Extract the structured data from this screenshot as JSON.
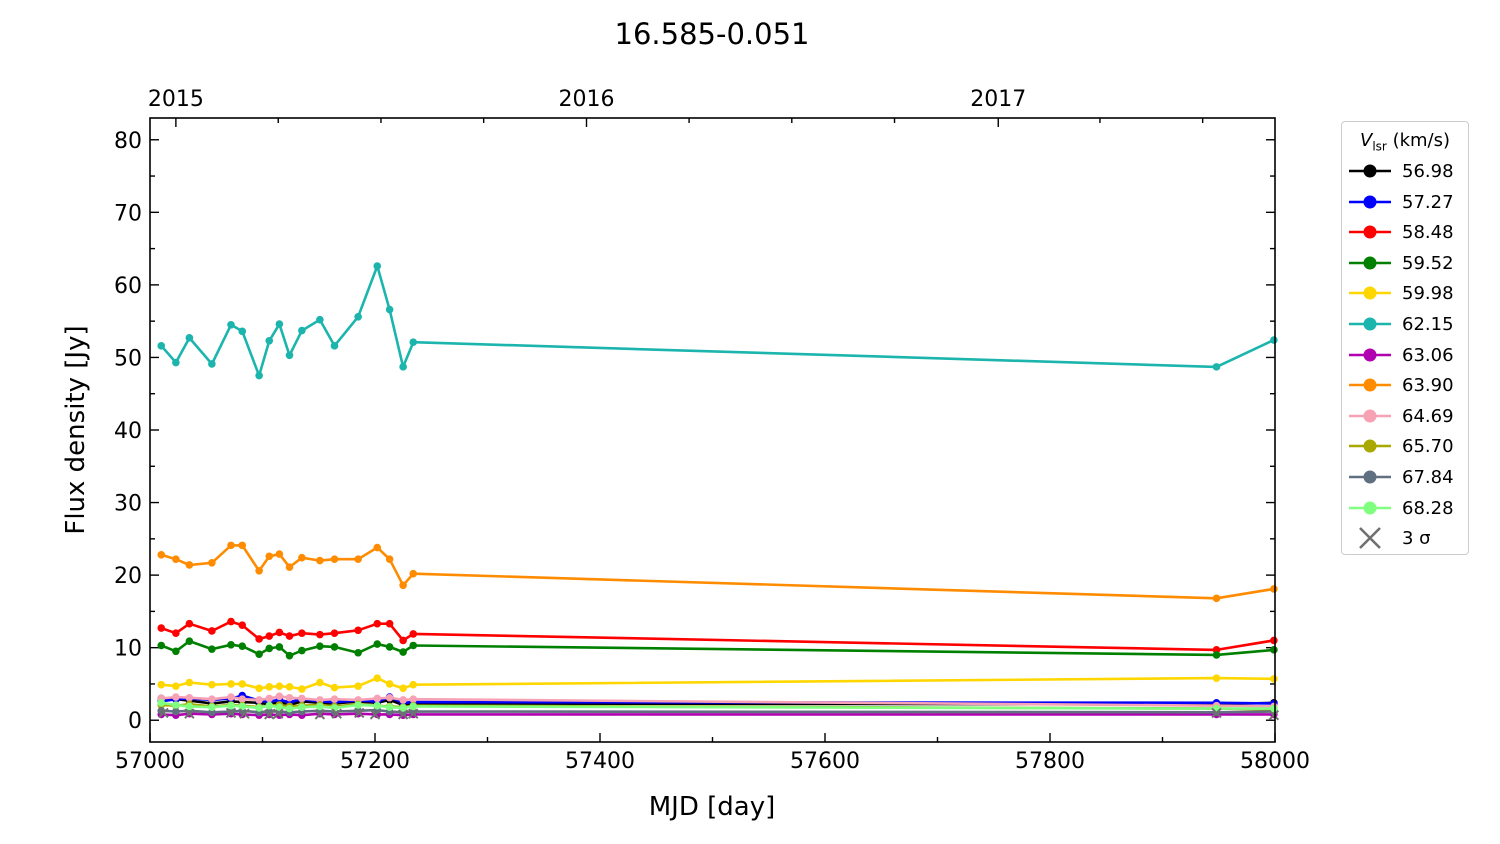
{
  "chart_data": {
    "type": "line",
    "title": "16.585-0.051",
    "xlabel": "MJD [day]",
    "ylabel": "Flux density [Jy]",
    "xlim": [
      57000,
      58000
    ],
    "ylim": [
      -3,
      83
    ],
    "x_ticks": [
      57000,
      57200,
      57400,
      57600,
      57800,
      58000
    ],
    "y_ticks": [
      0,
      10,
      20,
      30,
      40,
      50,
      60,
      70,
      80
    ],
    "top_axis": {
      "labels": [
        {
          "label": "2015",
          "mjd": 57023
        },
        {
          "label": "2016",
          "mjd": 57388
        },
        {
          "label": "2017",
          "mjd": 57754
        }
      ]
    },
    "legend": {
      "title_main": "V",
      "title_sub": "lsr",
      "title_rest": " (km/s)",
      "placement": "outside-right",
      "upper_limit_label": "3 σ"
    },
    "x": [
      57010,
      57023,
      57035,
      57055,
      57072,
      57082,
      57097,
      57106,
      57115,
      57124,
      57135,
      57151,
      57164,
      57185,
      57202,
      57213,
      57225,
      57234,
      57948,
      57999
    ],
    "series": [
      {
        "name": "56.98",
        "color": "#000000",
        "values": [
          3.0,
          2.9,
          2.7,
          2.3,
          2.6,
          2.5,
          2.4,
          2.2,
          2.5,
          2.1,
          2.6,
          2.4,
          2.3,
          2.6,
          2.4,
          2.8,
          2.1,
          2.3,
          2.2,
          2.4
        ]
      },
      {
        "name": "57.27",
        "color": "#0000ff",
        "values": [
          2.6,
          2.9,
          3.0,
          2.8,
          3.0,
          3.4,
          2.7,
          2.6,
          2.8,
          2.5,
          2.9,
          2.6,
          2.5,
          2.7,
          2.6,
          3.2,
          2.4,
          2.5,
          2.4,
          2.3
        ]
      },
      {
        "name": "58.48",
        "color": "#ff0000",
        "values": [
          12.7,
          12.0,
          13.3,
          12.3,
          13.6,
          13.1,
          11.2,
          11.6,
          12.1,
          11.6,
          12.0,
          11.8,
          12.0,
          12.4,
          13.3,
          13.3,
          11.0,
          11.9,
          9.7,
          11.0
        ]
      },
      {
        "name": "59.52",
        "color": "#008000",
        "values": [
          10.3,
          9.5,
          10.9,
          9.8,
          10.4,
          10.2,
          9.1,
          9.9,
          10.1,
          8.9,
          9.6,
          10.2,
          10.1,
          9.3,
          10.5,
          10.1,
          9.4,
          10.3,
          9.0,
          9.7
        ]
      },
      {
        "name": "59.98",
        "color": "#ffd700",
        "values": [
          4.9,
          4.7,
          5.2,
          4.9,
          5.0,
          5.0,
          4.4,
          4.6,
          4.7,
          4.6,
          4.3,
          5.2,
          4.5,
          4.7,
          5.8,
          5.0,
          4.4,
          4.9,
          5.8,
          5.7
        ]
      },
      {
        "name": "62.15",
        "color": "#1cb5ad",
        "values": [
          51.6,
          49.3,
          52.7,
          49.1,
          54.5,
          53.6,
          47.5,
          52.3,
          54.6,
          50.3,
          53.7,
          55.2,
          51.6,
          55.6,
          62.6,
          56.6,
          48.7,
          52.1,
          48.7,
          52.4
        ]
      },
      {
        "name": "63.06",
        "color": "#b000b0",
        "values": [
          0.8,
          0.7,
          0.9,
          0.8,
          0.9,
          0.8,
          0.7,
          0.8,
          0.7,
          0.8,
          0.7,
          0.9,
          0.8,
          0.9,
          0.8,
          0.8,
          0.7,
          0.8,
          0.8,
          0.8
        ]
      },
      {
        "name": "63.90",
        "color": "#ff8c00",
        "values": [
          22.8,
          22.2,
          21.4,
          21.7,
          24.1,
          24.1,
          20.6,
          22.6,
          22.9,
          21.1,
          22.4,
          22.0,
          22.2,
          22.2,
          23.8,
          22.2,
          18.6,
          20.2,
          16.8,
          18.1
        ]
      },
      {
        "name": "64.69",
        "color": "#f7a1b5",
        "values": [
          3.0,
          3.2,
          3.1,
          2.9,
          3.2,
          2.9,
          2.8,
          3.0,
          3.3,
          3.1,
          3.0,
          2.8,
          2.9,
          2.8,
          3.0,
          3.1,
          2.8,
          2.9,
          2.0,
          1.9
        ]
      },
      {
        "name": "65.70",
        "color": "#a8a800",
        "values": [
          2.1,
          2.0,
          2.2,
          1.9,
          2.1,
          2.0,
          1.8,
          2.0,
          2.1,
          1.9,
          2.0,
          2.1,
          1.9,
          2.2,
          2.0,
          1.9,
          1.8,
          2.0,
          1.6,
          1.5
        ]
      },
      {
        "name": "67.84",
        "color": "#607080",
        "values": [
          1.3,
          1.2,
          1.3,
          1.1,
          1.2,
          1.3,
          1.1,
          1.2,
          1.2,
          1.1,
          1.2,
          1.3,
          1.2,
          1.3,
          1.4,
          1.2,
          1.1,
          1.2,
          1.1,
          1.2
        ]
      },
      {
        "name": "68.28",
        "color": "#80ff80",
        "values": [
          2.4,
          2.1,
          1.9,
          1.8,
          2.0,
          1.9,
          1.7,
          2.0,
          1.8,
          1.6,
          1.8,
          1.9,
          1.7,
          2.1,
          2.0,
          1.8,
          1.7,
          1.9,
          1.6,
          1.6
        ]
      }
    ],
    "upper_limits": {
      "name": "3 σ",
      "color": "#707070",
      "points": [
        {
          "x": 57012,
          "y": 1.0
        },
        {
          "x": 57035,
          "y": 0.9
        },
        {
          "x": 57072,
          "y": 1.0
        },
        {
          "x": 57084,
          "y": 0.9
        },
        {
          "x": 57106,
          "y": 0.8
        },
        {
          "x": 57114,
          "y": 0.9
        },
        {
          "x": 57151,
          "y": 0.8
        },
        {
          "x": 57166,
          "y": 0.9
        },
        {
          "x": 57186,
          "y": 1.0
        },
        {
          "x": 57200,
          "y": 0.8
        },
        {
          "x": 57225,
          "y": 0.8
        },
        {
          "x": 57234,
          "y": 0.9
        },
        {
          "x": 57948,
          "y": 1.0
        },
        {
          "x": 57999,
          "y": 0.7
        }
      ]
    }
  }
}
